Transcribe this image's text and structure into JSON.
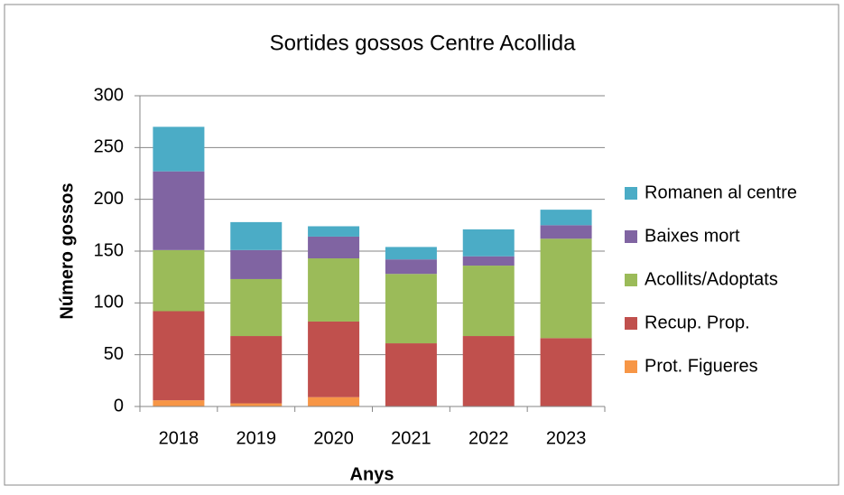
{
  "chart_data": {
    "type": "bar",
    "stacked": true,
    "title": "Sortides gossos Centre Acollida",
    "x_label": "Anys",
    "y_label": "Número gossos",
    "categories": [
      "2018",
      "2019",
      "2020",
      "2021",
      "2022",
      "2023"
    ],
    "series": [
      {
        "name": "Prot. Figueres",
        "color": "#f79646",
        "values": [
          6,
          3,
          9,
          0,
          0,
          0
        ]
      },
      {
        "name": "Recup. Prop.",
        "color": "#c0504d",
        "values": [
          86,
          65,
          73,
          61,
          68,
          66
        ]
      },
      {
        "name": "Acollits/Adoptats",
        "color": "#9bbb59",
        "values": [
          59,
          55,
          61,
          67,
          68,
          96
        ]
      },
      {
        "name": "Baixes mort",
        "color": "#8064a2",
        "values": [
          76,
          28,
          21,
          14,
          9,
          13
        ]
      },
      {
        "name": "Romanen al centre",
        "color": "#4bacc6",
        "values": [
          43,
          27,
          10,
          12,
          26,
          15
        ]
      }
    ],
    "ylim": [
      0,
      300
    ],
    "yticks": [
      0,
      50,
      100,
      150,
      200,
      250,
      300
    ],
    "grid": true,
    "legend": "right"
  }
}
